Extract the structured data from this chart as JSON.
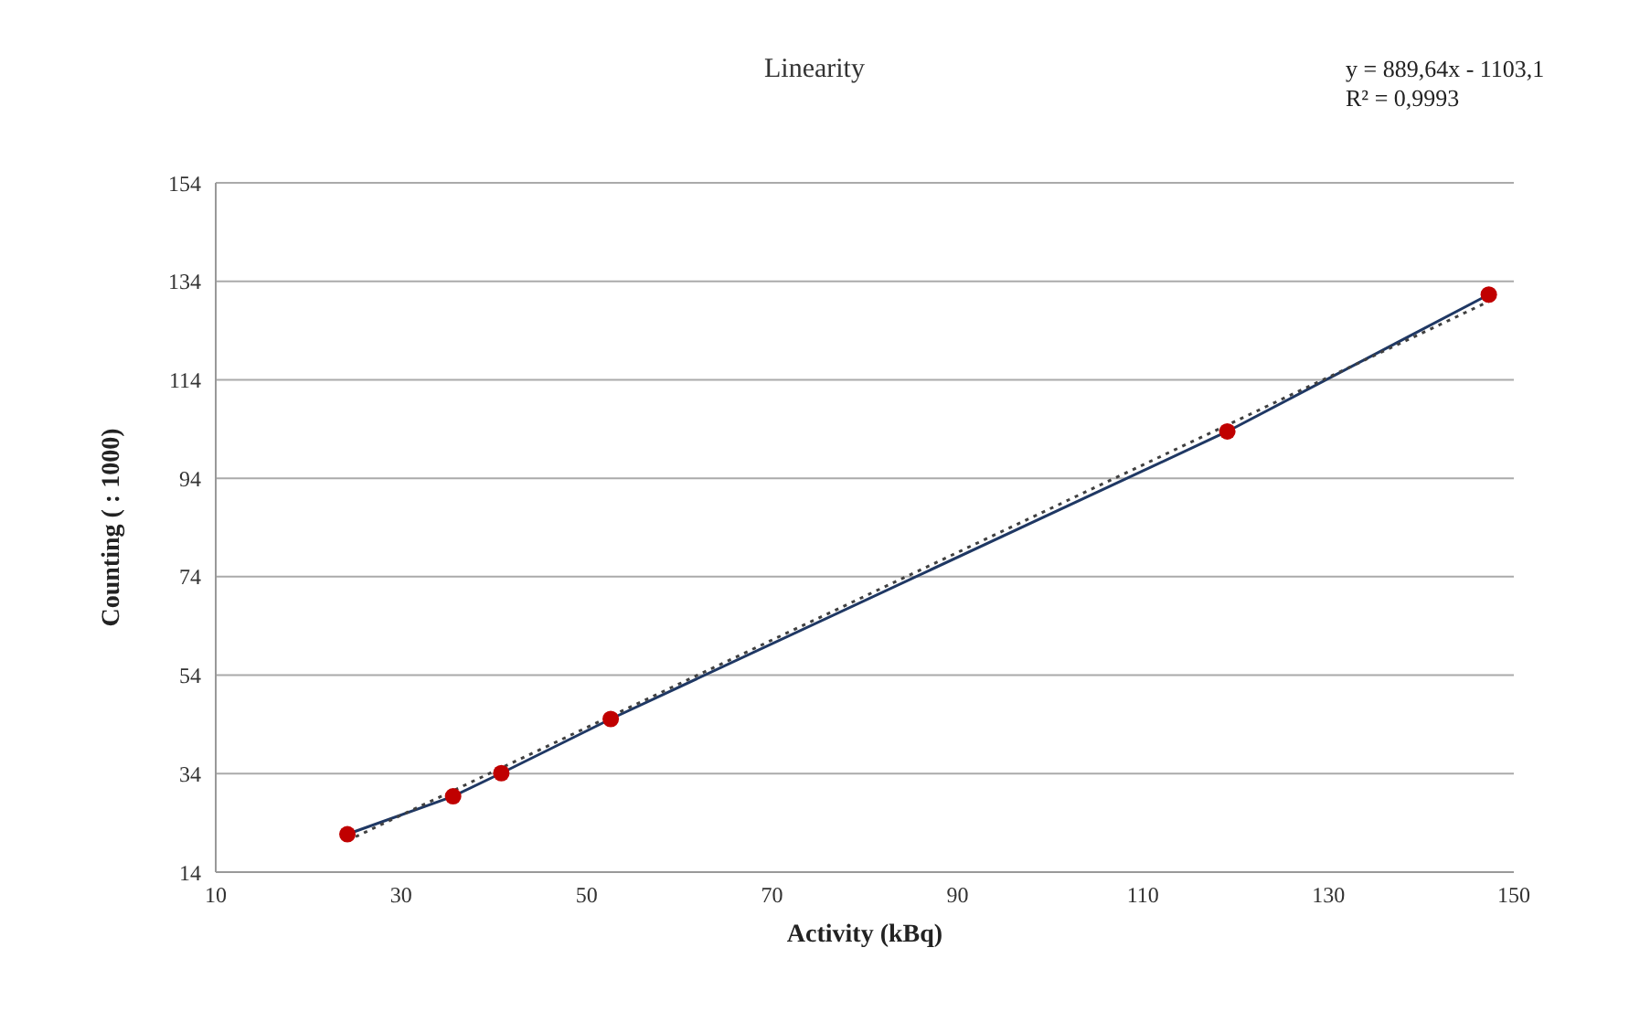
{
  "chart_data": {
    "type": "line",
    "title": "Linearity",
    "xlabel": "Activity (kBq)",
    "ylabel": "Counting ( : 1000)",
    "annotations": [
      "y = 889,64x - 1103,1",
      "R² = 0,9993"
    ],
    "series": [
      {
        "color": "#1f3864",
        "line_style": "solid",
        "marker": "none",
        "x": [
          24.2,
          35.6,
          40.8,
          52.6,
          119.1,
          147.3
        ],
        "values": [
          21.7,
          29.4,
          34.1,
          45.1,
          103.5,
          131.3
        ]
      },
      {
        "type": "scatter",
        "color": "#c00000",
        "marker": "circle",
        "x": [
          24.2,
          35.6,
          40.8,
          52.6,
          119.1,
          147.3
        ],
        "values": [
          21.7,
          29.4,
          34.1,
          45.1,
          103.5,
          131.3
        ]
      },
      {
        "type": "line",
        "color": "#404040",
        "line_style": "dotted",
        "marker": "none",
        "x": [
          24.2,
          147.3
        ],
        "values": [
          20.4,
          129.9
        ]
      }
    ],
    "xlim": [
      10,
      150
    ],
    "xticks": [
      10,
      30,
      50,
      70,
      90,
      110,
      130,
      150
    ],
    "ylim": [
      14,
      154
    ],
    "yticks": [
      14,
      34,
      54,
      74,
      94,
      114,
      134,
      154
    ],
    "grid": "y"
  }
}
